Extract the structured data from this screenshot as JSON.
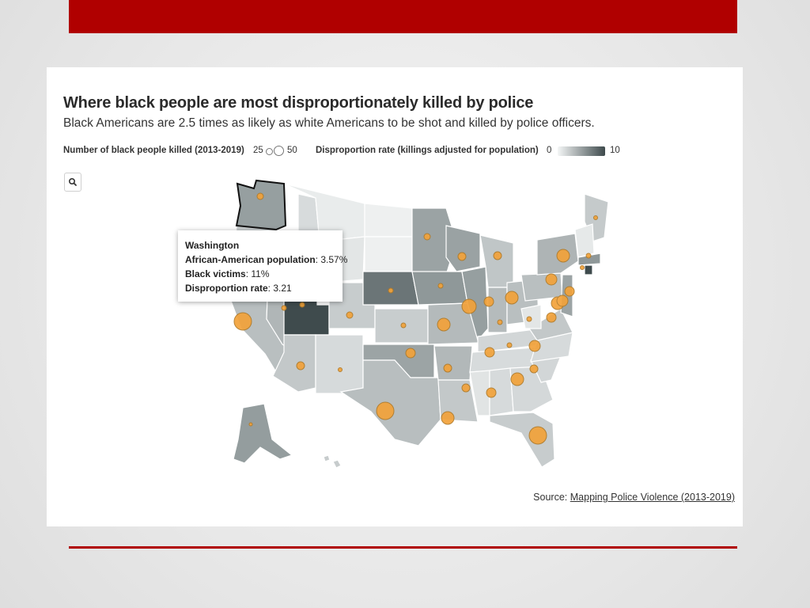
{
  "chart": {
    "title": "Where black people are most disproportionately killed by police",
    "subtitle": "Black Americans are 2.5 times as likely as white Americans to be shot and killed by police officers."
  },
  "legend": {
    "size_label": "Number of black people killed (2013-2019)",
    "size_min": "25",
    "size_max": "50",
    "color_label": "Disproportion rate (killings adjusted for population)",
    "color_min": "0",
    "color_max": "10",
    "color_low": "#f4f6f6",
    "color_high": "#3e4a4c"
  },
  "search": {
    "icon": "search-icon"
  },
  "tooltip": {
    "state": "Washington",
    "population_label": "African-American population",
    "population_value": "3.57%",
    "victims_label": "Black victims",
    "victims_value": "11%",
    "rate_label": "Disproportion rate",
    "rate_value": "3.21"
  },
  "source": {
    "label": "Source:",
    "link_text": "Mapping Police Violence (2013-2019)"
  },
  "map": {
    "highlighted_state": "Washington",
    "bubble_color": "#f2a23a"
  }
}
